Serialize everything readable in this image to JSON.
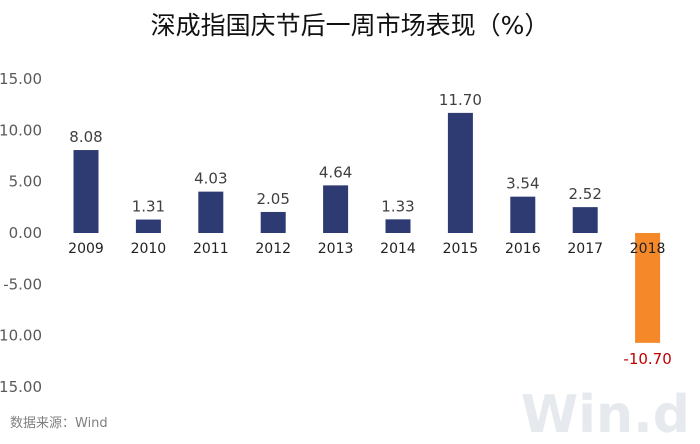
{
  "chart_data": {
    "type": "bar",
    "title": "深成指国庆节后一周市场表现（%）",
    "categories": [
      "2009",
      "2010",
      "2011",
      "2012",
      "2013",
      "2014",
      "2015",
      "2016",
      "2017",
      "2018"
    ],
    "values": [
      8.08,
      1.31,
      4.03,
      2.05,
      4.64,
      1.33,
      11.7,
      3.54,
      2.52,
      -10.7
    ],
    "data_labels": [
      "8.08",
      "1.31",
      "4.03",
      "2.05",
      "4.64",
      "1.33",
      "11.70",
      "3.54",
      "2.52",
      "-10.70"
    ],
    "ylim": [
      -15,
      15
    ],
    "yticks": [
      15,
      10,
      5,
      0,
      -5,
      -10,
      -15
    ],
    "ytick_labels": [
      "15.00",
      "10.00",
      "5.00",
      "0.00",
      "-5.00",
      "-10.00",
      "-15.00"
    ],
    "xlabel": "",
    "ylabel": "",
    "grid": false,
    "legend": "none",
    "colors": {
      "positive": "#2e3b73",
      "negative": "#f5892a",
      "negative_label": "#c00000"
    }
  },
  "source": "数据来源：Wind",
  "watermark": "Win.d"
}
